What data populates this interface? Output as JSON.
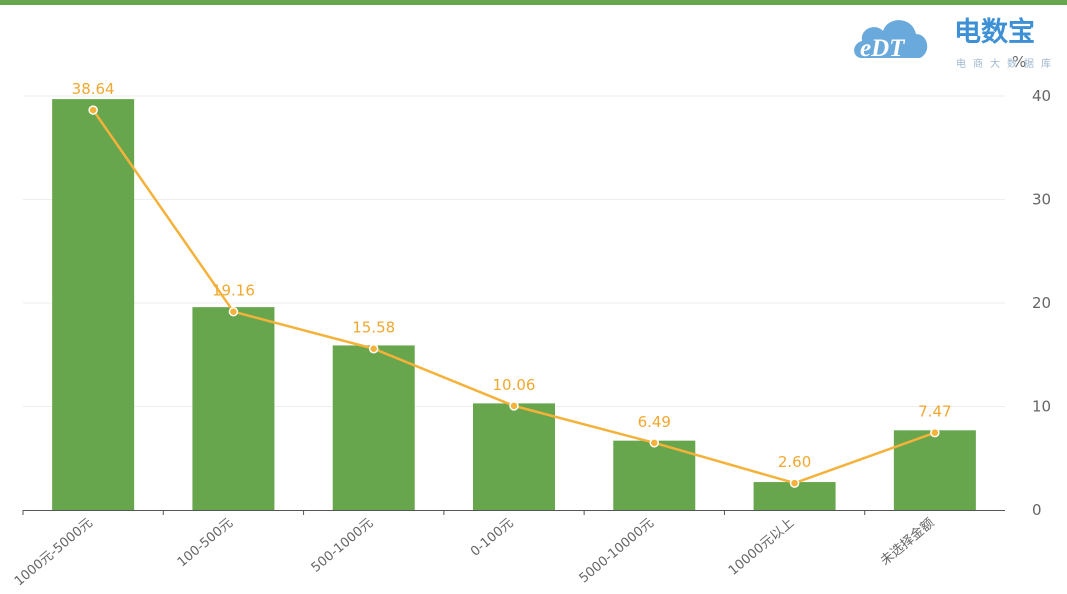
{
  "chart_data": {
    "type": "bar",
    "categories": [
      "1000元-5000元",
      "100-500元",
      "500-1000元",
      "0-100元",
      "5000-10000元",
      "10000元以上",
      "未选择金额"
    ],
    "series": [
      {
        "type": "bar",
        "values": [
          39.7,
          19.6,
          15.9,
          10.3,
          6.7,
          2.7,
          7.7
        ]
      },
      {
        "type": "line",
        "values": [
          38.64,
          19.16,
          15.58,
          10.06,
          6.49,
          2.6,
          7.47
        ]
      }
    ],
    "data_labels": [
      "38.64",
      "19.16",
      "15.58",
      "10.06",
      "6.49",
      "2.60",
      "7.47"
    ],
    "y_unit": "%",
    "ylim": [
      0,
      40
    ],
    "y_ticks": [
      0,
      10,
      20,
      30,
      40
    ],
    "grid": true
  },
  "colors": {
    "bar": "#67a64d",
    "line": "#f4b23a",
    "label": "#f0a830",
    "top_bar": "#67a64d",
    "axis_text": "#666666",
    "grid": "#eeeeee"
  },
  "logo": {
    "icon": "cloud-icon",
    "mark": "eDT",
    "title": "电数宝",
    "subtitle": "电商大数据库"
  }
}
